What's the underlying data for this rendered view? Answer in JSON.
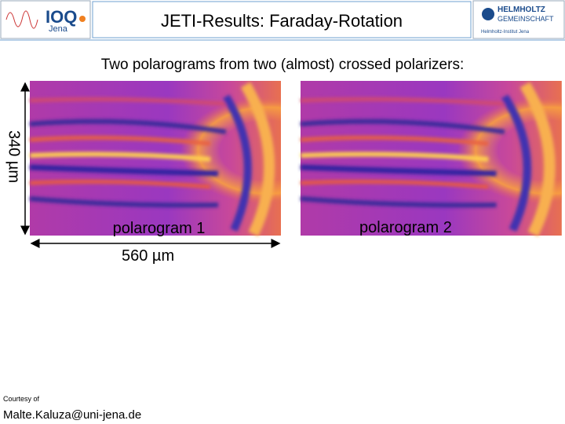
{
  "header": {
    "title": "JETI-Results: Faraday-Rotation",
    "logo_left": {
      "name": "IOQ",
      "city": "Jena"
    },
    "logo_right": {
      "name": "HELMHOLTZ",
      "sub": "GEMEINSCHAFT",
      "institute": "Helmholtz-Institut Jena"
    }
  },
  "subtitle": "Two polarograms from two (almost) crossed polarizers:",
  "scale": {
    "vertical": "340 µm",
    "horizontal": "560 µm"
  },
  "images": [
    {
      "label": "polarogram 1"
    },
    {
      "label": "polarogram 2"
    }
  ],
  "footer": {
    "credit": "Courtesy of",
    "email": "Malte.Kaluza@uni-jena.de"
  }
}
